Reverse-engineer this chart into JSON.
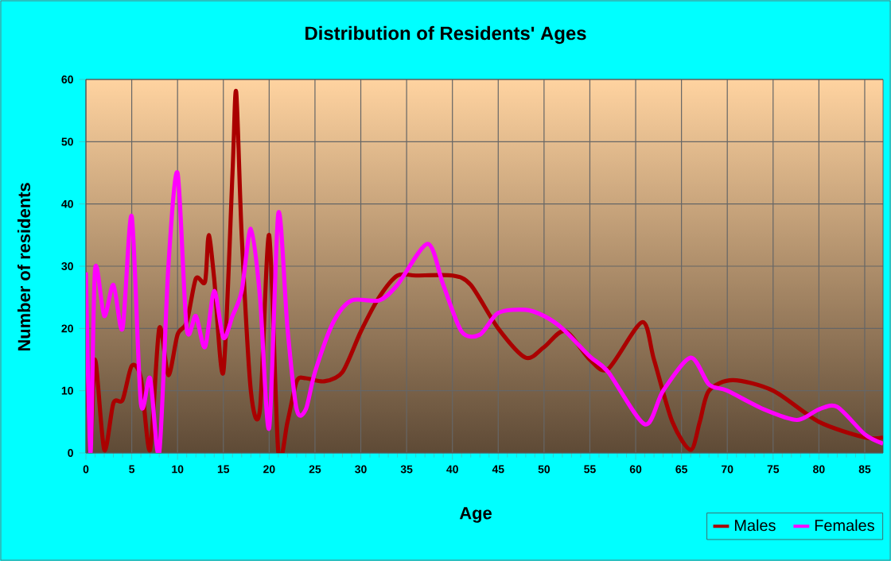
{
  "chart_data": {
    "type": "line",
    "title": "Distribution of Residents' Ages",
    "xlabel": "Age",
    "ylabel": "Number of residents",
    "xlim": [
      0,
      87
    ],
    "ylim": [
      0,
      60
    ],
    "xticks": [
      0,
      5,
      10,
      15,
      20,
      25,
      30,
      35,
      40,
      45,
      50,
      55,
      60,
      65,
      70,
      75,
      80,
      85
    ],
    "yticks": [
      0,
      10,
      20,
      30,
      40,
      50,
      60
    ],
    "grid": true,
    "legend": "bottom right",
    "marker": "none",
    "line_style": "solid",
    "series": [
      {
        "name": "Males",
        "color": "#aa0000",
        "x": [
          0,
          0.5,
          1,
          2,
          3,
          4,
          5,
          6,
          7,
          8,
          9,
          10,
          11,
          12,
          13,
          13.4,
          14,
          15,
          16,
          16.4,
          17,
          18,
          19,
          20,
          21,
          22,
          23,
          24,
          26,
          28,
          30,
          32,
          34,
          36,
          40,
          42,
          45,
          48,
          50,
          52.3,
          55,
          57,
          60.7,
          62,
          64,
          66,
          67,
          68,
          70.6,
          75,
          80,
          85,
          87
        ],
        "values": [
          20,
          1,
          15,
          0.5,
          8,
          8.5,
          14,
          12,
          0.5,
          20,
          12.5,
          19,
          21,
          28,
          27.5,
          35,
          28,
          13,
          45,
          58,
          35,
          10,
          7,
          35,
          0,
          5,
          11.5,
          12,
          11.5,
          13,
          19.5,
          25,
          28.5,
          28.5,
          28.5,
          27,
          20,
          15.3,
          17,
          19.6,
          15,
          13.5,
          21,
          15,
          5,
          0.5,
          5,
          10,
          11.7,
          10,
          5,
          2.5,
          2.5
        ]
      },
      {
        "name": "Females",
        "color": "#ff00ff",
        "x": [
          0,
          0.5,
          1,
          2,
          3,
          4,
          5,
          6,
          7,
          8,
          9,
          10,
          11,
          12,
          13,
          14,
          15,
          16,
          17,
          18,
          19,
          20,
          21,
          22,
          23,
          24,
          25,
          27,
          29,
          32,
          34,
          37.3,
          39,
          41,
          43,
          45,
          48,
          50,
          52,
          55,
          57,
          61,
          63,
          66,
          68,
          70,
          74,
          77.6,
          80,
          82,
          85,
          87
        ],
        "values": [
          29,
          0,
          29.5,
          22,
          27,
          20,
          38,
          8,
          12,
          0,
          30,
          45,
          20,
          22,
          17,
          26,
          18.5,
          22,
          26,
          36,
          25,
          4,
          38.5,
          20,
          7,
          7,
          13,
          21,
          24.5,
          24.5,
          27,
          33.6,
          27,
          19.5,
          19,
          22.5,
          23,
          22,
          20,
          15.5,
          13,
          4.6,
          10,
          15.3,
          11,
          10,
          7,
          5.3,
          7,
          7.4,
          3,
          1.5
        ]
      }
    ]
  }
}
